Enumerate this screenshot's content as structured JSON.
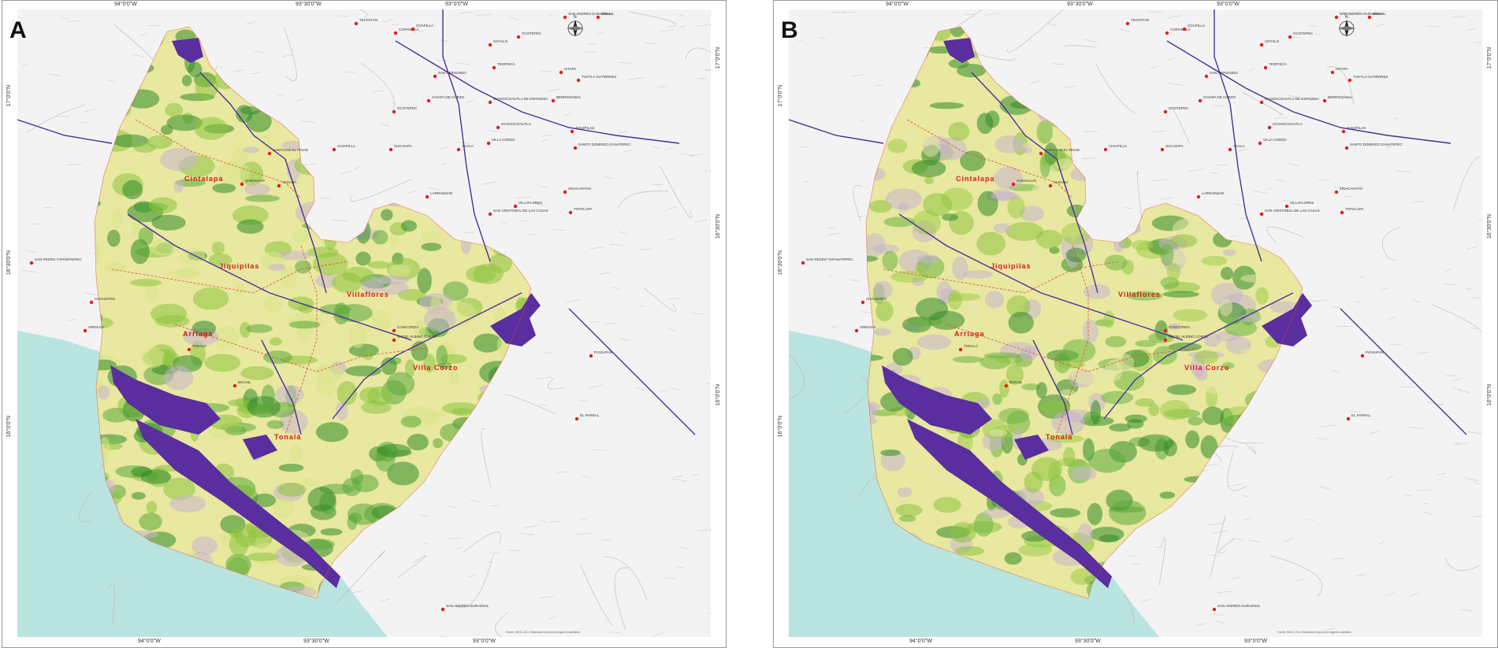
{
  "colors": {
    "sea": "#b9e4df",
    "relief": "#e8e6e8",
    "vegetation_dense": "#2f8a2a",
    "vegetation_mid": "#8cc23e",
    "vegetation_sparse": "#e8e8a0",
    "degraded": "#c9b3cf",
    "water_body": "#5a2e9e",
    "river": "#4a2f9a",
    "town": "#e0201a",
    "boundary": "#e34a3a",
    "region_label": "#d71a1a"
  },
  "panels": [
    {
      "letter": "A",
      "coords": {
        "top": [
          "94°0'0\"W",
          "93°30'0\"W",
          "93°0'0\"W"
        ],
        "bottom": [
          "94°0'0\"W",
          "93°30'0\"W",
          "93°0'0\"W"
        ],
        "left": [
          "17°0'0\"N",
          "16°30'0\"N",
          "16°0'0\"N"
        ],
        "right": [
          "17°0'0\"N",
          "16°30'0\"N",
          "16°0'0\"N"
        ]
      }
    },
    {
      "letter": "B",
      "coords": {
        "top": [
          "94°0'0\"W",
          "93°30'0\"W",
          "93°0'0\"W"
        ],
        "bottom": [
          "94°0'0\"W",
          "93°30'0\"W",
          "93°0'0\"W"
        ],
        "left": [
          "17°0'0\"N",
          "16°30'0\"N",
          "16°0'0\"N"
        ],
        "right": [
          "17°0'0\"N",
          "16°30'0\"N",
          "16°0'0\"N"
        ]
      }
    }
  ],
  "regions": [
    "Cintalapa",
    "Jiquipilas",
    "Villaflores",
    "Arriaga",
    "Villa Corzo",
    "Tonalá"
  ],
  "towns": [
    "SAN ANDRÉS DURAZNAL",
    "BOCHIL",
    "TECPATÁN",
    "COPAINALÁ",
    "OCOTEPEC",
    "COAPILLA",
    "SOYALÓ",
    "TEOPISCA",
    "IXTAPA",
    "SAN FERNANDO",
    "TUXTLA GUTIÉRREZ",
    "CHIAPA DE CORZO",
    "OCOZOCOAUTLA DE ESPINOSA",
    "BERRIOZÁBAL",
    "OCOTEPEC",
    "OCOZOCOAUTLA",
    "JIQUIPILAS",
    "SUCHIAPA",
    "ACALA",
    "CHIAPILLA",
    "SANTIAGO EL PINAR",
    "ALDAMA",
    "CHENALHÓ",
    "LARRAINZAR",
    "ZINACANTÁN",
    "SAN CRISTÓBAL DE LAS CASAS",
    "TOTOLAPA",
    "VILLAFLORES",
    "VILLA CORZO",
    "SANTO DOMINGO ZANATEPEC",
    "SAN PEDRO TAPANATEPEC",
    "CHAHUITES",
    "ARRIAGA",
    "TONALÁ",
    "CONCORDIA",
    "ÁNGEL ALBINO CORZO",
    "PIJIJIAPAN",
    "EL PARRAL"
  ],
  "compass": "N",
  "credits": "Fuente: INEGI, 2021. Elaboración propia con imágenes satelitales."
}
